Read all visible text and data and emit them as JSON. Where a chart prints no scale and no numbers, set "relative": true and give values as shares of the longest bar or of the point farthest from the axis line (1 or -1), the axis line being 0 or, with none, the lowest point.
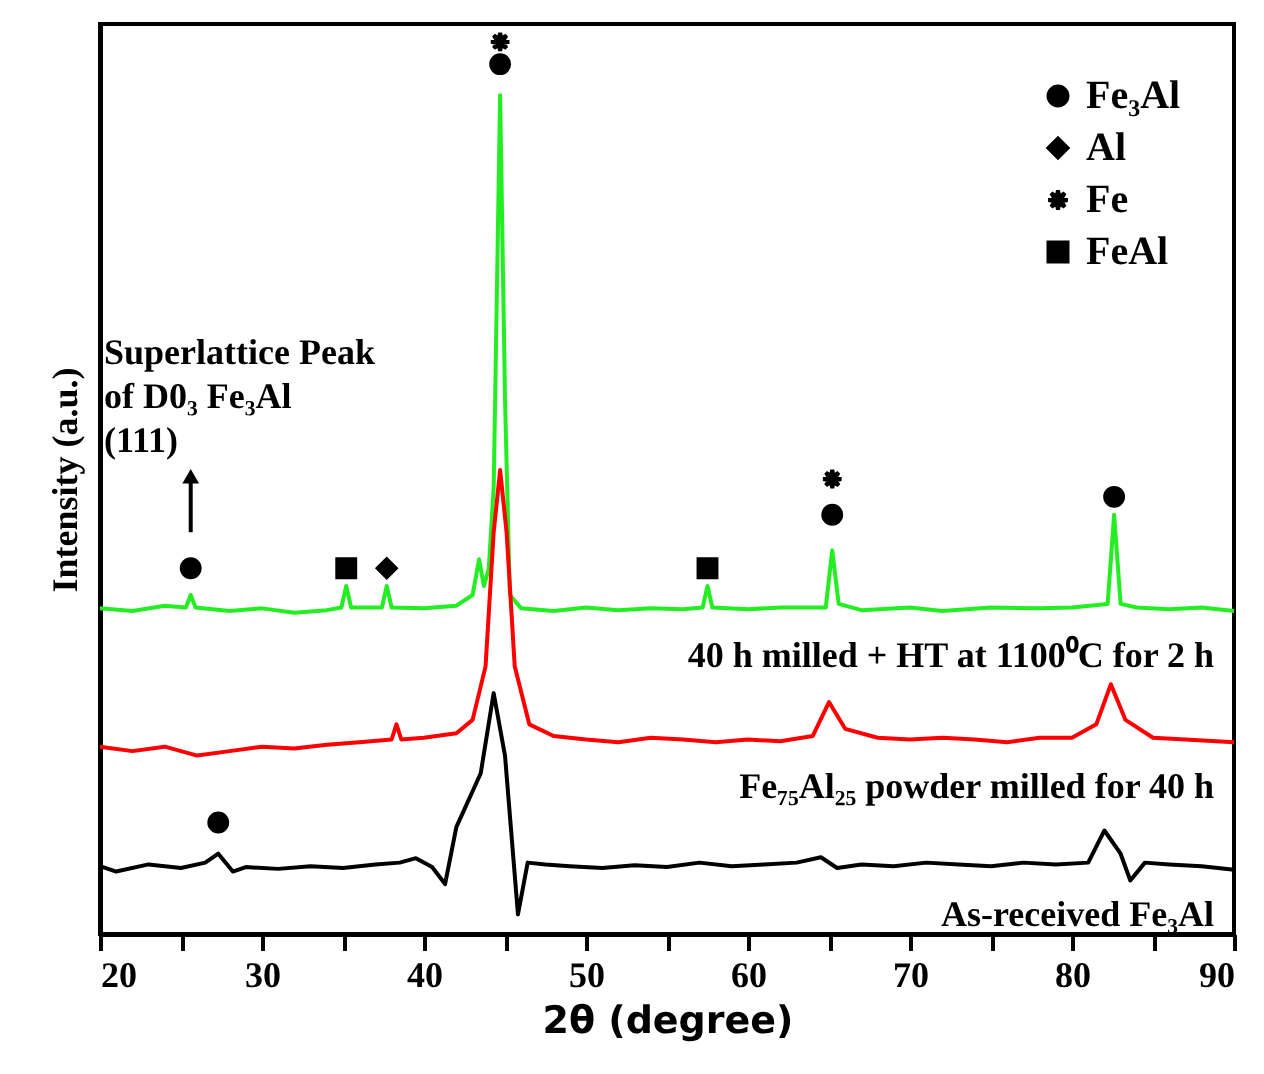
{
  "chart_data": {
    "type": "line",
    "relative": true,
    "xlabel": "2θ (degree)",
    "ylabel": "Intensity (a.u.)",
    "xlim": [
      20,
      90
    ],
    "xticks": [
      20,
      {
        "value": 25,
        "label": null
      },
      30,
      {
        "value": 35,
        "label": null
      },
      40,
      {
        "value": 45,
        "label": null
      },
      50,
      {
        "value": 55,
        "label": null
      },
      60,
      {
        "value": 65,
        "label": null
      },
      70,
      {
        "value": 75,
        "label": null
      },
      80,
      {
        "value": 85,
        "label": null
      },
      90
    ],
    "tick_labels": "x",
    "legend": "top right",
    "annotations": [
      {
        "text": "Superlattice Peak\nof D0₃ Fe₃Al\n(111)",
        "x": 25.6,
        "y": 0.41
      }
    ],
    "series": [
      {
        "name": "40 h milled + HT at 1100⁰C for 2 h",
        "color": "#22ee22",
        "x": [
          20,
          22,
          24,
          25.3,
          25.6,
          25.9,
          28,
          30,
          32,
          34,
          34.9,
          35.2,
          35.5,
          37.4,
          37.7,
          38.0,
          40,
          42,
          43,
          43.4,
          43.7,
          44.0,
          44.3,
          44.7,
          45.0,
          45.3,
          46,
          48,
          50,
          52,
          54,
          56,
          57.2,
          57.5,
          57.8,
          60,
          62,
          64.8,
          65.2,
          65.6,
          67,
          70,
          72,
          75,
          78,
          80,
          82.2,
          82.6,
          83.0,
          84,
          86,
          88,
          90
        ],
        "values": [
          0.365,
          0.362,
          0.368,
          0.366,
          0.38,
          0.366,
          0.362,
          0.365,
          0.36,
          0.363,
          0.366,
          0.39,
          0.366,
          0.366,
          0.39,
          0.366,
          0.365,
          0.368,
          0.38,
          0.42,
          0.39,
          0.41,
          0.5,
          0.94,
          0.6,
          0.38,
          0.365,
          0.362,
          0.366,
          0.363,
          0.365,
          0.364,
          0.366,
          0.39,
          0.366,
          0.364,
          0.366,
          0.366,
          0.43,
          0.37,
          0.363,
          0.366,
          0.362,
          0.366,
          0.365,
          0.366,
          0.37,
          0.47,
          0.37,
          0.366,
          0.364,
          0.366,
          0.362
        ]
      },
      {
        "name": "Fe₇₅Al₂₅ powder milled for 40 h",
        "color": "#ff0000",
        "x": [
          20,
          22,
          24,
          26,
          28,
          30,
          32,
          34,
          36,
          38,
          38.3,
          38.6,
          40,
          42,
          43,
          43.8,
          44.3,
          44.7,
          45.1,
          45.6,
          46.5,
          48,
          50,
          52,
          54,
          56,
          58,
          60,
          62,
          64,
          65.0,
          66,
          68,
          70,
          72,
          74,
          76,
          78,
          80,
          81.5,
          82.4,
          83.3,
          85,
          87,
          90
        ],
        "values": [
          0.21,
          0.205,
          0.21,
          0.2,
          0.205,
          0.21,
          0.208,
          0.212,
          0.215,
          0.218,
          0.235,
          0.218,
          0.22,
          0.225,
          0.24,
          0.3,
          0.45,
          0.52,
          0.45,
          0.3,
          0.235,
          0.222,
          0.218,
          0.215,
          0.22,
          0.218,
          0.215,
          0.218,
          0.216,
          0.222,
          0.26,
          0.23,
          0.22,
          0.218,
          0.22,
          0.218,
          0.215,
          0.22,
          0.22,
          0.235,
          0.28,
          0.24,
          0.22,
          0.218,
          0.215
        ]
      },
      {
        "name": "As-received Fe₃Al",
        "color": "#000000",
        "x": [
          20,
          21,
          23,
          25,
          26.5,
          27.3,
          28.2,
          29,
          31,
          33,
          35,
          37,
          38.5,
          39.5,
          40.5,
          41.3,
          42.0,
          42.5,
          43.0,
          43.5,
          44.3,
          45.0,
          45.8,
          46.4,
          47.5,
          49,
          51,
          53,
          55,
          57,
          59,
          61,
          63,
          64.5,
          65.5,
          67,
          69,
          71,
          73,
          75,
          77,
          79,
          81,
          82.0,
          83.0,
          83.6,
          84.5,
          86,
          88,
          90
        ],
        "values": [
          0.076,
          0.07,
          0.078,
          0.074,
          0.08,
          0.09,
          0.07,
          0.075,
          0.073,
          0.076,
          0.074,
          0.078,
          0.08,
          0.085,
          0.075,
          0.056,
          0.12,
          0.14,
          0.16,
          0.18,
          0.27,
          0.2,
          0.022,
          0.08,
          0.078,
          0.076,
          0.074,
          0.077,
          0.075,
          0.08,
          0.076,
          0.078,
          0.08,
          0.086,
          0.074,
          0.078,
          0.076,
          0.08,
          0.078,
          0.076,
          0.08,
          0.078,
          0.08,
          0.116,
          0.09,
          0.06,
          0.08,
          0.078,
          0.076,
          0.072
        ]
      },
      {
        "name": "Fe₃Al",
        "type": "scatter",
        "marker": "circle",
        "color": "#000000",
        "x": [
          25.6,
          44.7,
          65.2,
          82.6,
          27.3
        ],
        "values": [
          0.41,
          0.975,
          0.47,
          0.49,
          0.125
        ]
      },
      {
        "name": "Al",
        "type": "scatter",
        "marker": "diamond",
        "color": "#000000",
        "x": [
          37.7
        ],
        "values": [
          0.41
        ]
      },
      {
        "name": "Fe",
        "type": "scatter",
        "marker": "star",
        "color": "#000000",
        "x": [
          44.7,
          65.2
        ],
        "values": [
          1.0,
          0.51
        ]
      },
      {
        "name": "FeAl",
        "type": "scatter",
        "marker": "square",
        "color": "#000000",
        "x": [
          35.2,
          57.5
        ],
        "values": [
          0.41,
          0.41
        ]
      }
    ]
  }
}
